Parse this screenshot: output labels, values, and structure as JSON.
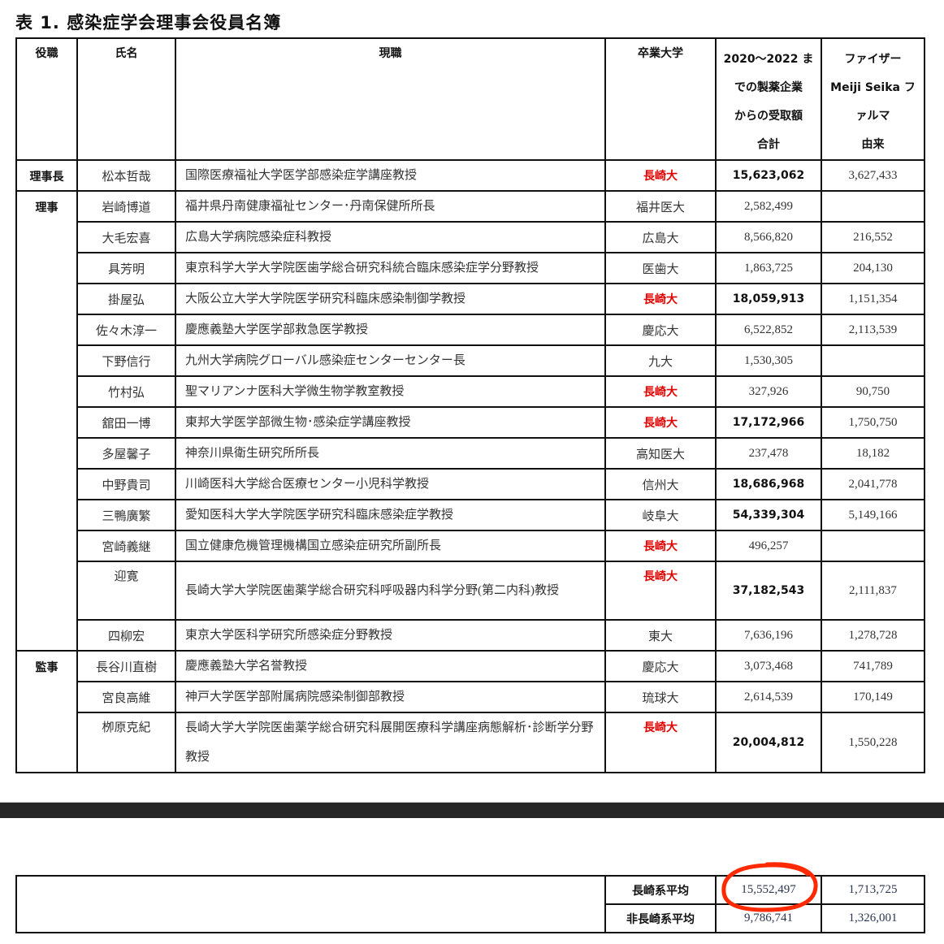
{
  "title": "表 1. 感染症学会理事会役員名簿",
  "headers": {
    "role": "役職",
    "name": "氏名",
    "position": "現職",
    "university": "卒業大学",
    "amount_lines": [
      "2020～2022 ま",
      "での製薬企業",
      "からの受取額",
      "合計"
    ],
    "pfizer_lines": [
      "ファイザー",
      "Meiji Seika フ",
      "ァルマ",
      "由来"
    ]
  },
  "highlight_color": "#e00000",
  "groups": [
    {
      "role": "理事長",
      "rows": [
        {
          "name": "松本哲哉",
          "position": "国際医療福祉大学医学部感染症学講座教授",
          "university": "長崎大",
          "nagasaki": true,
          "amount": "15,623,062",
          "amount_bold": true,
          "pfizer": "3,627,433"
        }
      ]
    },
    {
      "role": "理事",
      "rows": [
        {
          "name": "岩崎博道",
          "position": "福井県丹南健康福祉センター･丹南保健所所長",
          "university": "福井医大",
          "nagasaki": false,
          "amount": "2,582,499",
          "amount_bold": false,
          "pfizer": ""
        },
        {
          "name": "大毛宏喜",
          "position": "広島大学病院感染症科教授",
          "university": "広島大",
          "nagasaki": false,
          "amount": "8,566,820",
          "amount_bold": false,
          "pfizer": "216,552"
        },
        {
          "name": "具芳明",
          "position": "東京科学大学大学院医歯学総合研究科統合臨床感染症学分野教授",
          "university": "医歯大",
          "nagasaki": false,
          "amount": "1,863,725",
          "amount_bold": false,
          "pfizer": "204,130"
        },
        {
          "name": "掛屋弘",
          "position": "大阪公立大学大学院医学研究科臨床感染制御学教授",
          "university": "長崎大",
          "nagasaki": true,
          "amount": "18,059,913",
          "amount_bold": true,
          "pfizer": "1,151,354"
        },
        {
          "name": "佐々木淳一",
          "position": "慶應義塾大学医学部救急医学教授",
          "university": "慶応大",
          "nagasaki": false,
          "amount": "6,522,852",
          "amount_bold": false,
          "pfizer": "2,113,539"
        },
        {
          "name": "下野信行",
          "position": "九州大学病院グローバル感染症センターセンター長",
          "university": "九大",
          "nagasaki": false,
          "amount": "1,530,305",
          "amount_bold": false,
          "pfizer": ""
        },
        {
          "name": "竹村弘",
          "position": "聖マリアンナ医科大学微生物学教室教授",
          "university": "長崎大",
          "nagasaki": true,
          "amount": "327,926",
          "amount_bold": false,
          "pfizer": "90,750"
        },
        {
          "name": "舘田一博",
          "position": "東邦大学医学部微生物･感染症学講座教授",
          "university": "長崎大",
          "nagasaki": true,
          "amount": "17,172,966",
          "amount_bold": true,
          "pfizer": "1,750,750"
        },
        {
          "name": "多屋馨子",
          "position": "神奈川県衛生研究所所長",
          "university": "高知医大",
          "nagasaki": false,
          "amount": "237,478",
          "amount_bold": false,
          "pfizer": "18,182"
        },
        {
          "name": "中野貴司",
          "position": "川崎医科大学総合医療センター小児科学教授",
          "university": "信州大",
          "nagasaki": false,
          "amount": "18,686,968",
          "amount_bold": true,
          "pfizer": "2,041,778"
        },
        {
          "name": "三鴨廣繁",
          "position": "愛知医科大学大学院医学研究科臨床感染症学教授",
          "university": "岐阜大",
          "nagasaki": false,
          "amount": "54,339,304",
          "amount_bold": true,
          "pfizer": "5,149,166"
        },
        {
          "name": "宮崎義継",
          "position": "国立健康危機管理機構国立感染症研究所副所長",
          "university": "長崎大",
          "nagasaki": true,
          "amount": "496,257",
          "amount_bold": false,
          "pfizer": ""
        },
        {
          "name": "迎寛",
          "position": "長崎大学大学院医歯薬学総合研究科呼吸器内科学分野(第二内科)教授",
          "university": "長崎大",
          "nagasaki": true,
          "amount": "37,182,543",
          "amount_bold": true,
          "pfizer": "2,111,837",
          "tall": true
        },
        {
          "name": "四柳宏",
          "position": "東京大学医科学研究所感染症分野教授",
          "university": "東大",
          "nagasaki": false,
          "amount": "7,636,196",
          "amount_bold": false,
          "pfizer": "1,278,728"
        }
      ]
    },
    {
      "role": "監事",
      "rows": [
        {
          "name": "長谷川直樹",
          "position": "慶應義塾大学名誉教授",
          "university": "慶応大",
          "nagasaki": false,
          "amount": "3,073,468",
          "amount_bold": false,
          "pfizer": "741,789"
        },
        {
          "name": "宮良高維",
          "position": "神戸大学医学部附属病院感染制御部教授",
          "university": "琉球大",
          "nagasaki": false,
          "amount": "2,614,539",
          "amount_bold": false,
          "pfizer": "170,149"
        },
        {
          "name": "栁原克紀",
          "position": "長崎大学大学院医歯薬学総合研究科展開医療科学講座病態解析･診断学分野教授",
          "university": "長崎大",
          "nagasaki": true,
          "amount": "20,004,812",
          "amount_bold": true,
          "pfizer": "1,550,228",
          "tall": true
        }
      ]
    }
  ],
  "averages": [
    {
      "label": "長崎系平均",
      "amount": "15,552,497",
      "pfizer": "1,713,725",
      "circled": true
    },
    {
      "label": "非長崎系平均",
      "amount": "9,786,741",
      "pfizer": "1,326,001",
      "circled": false
    }
  ]
}
